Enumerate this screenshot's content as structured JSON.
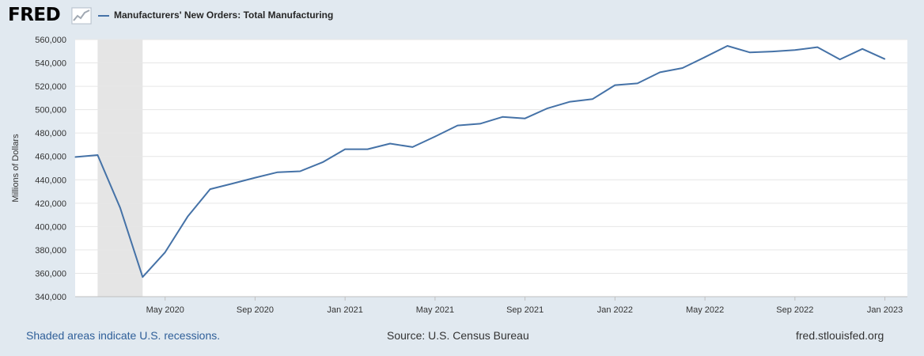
{
  "header": {
    "logo_text": "FRED",
    "series_title": "Manufacturers' New Orders: Total Manufacturing"
  },
  "footer": {
    "recession_note": "Shaded areas indicate U.S. recessions.",
    "source": "Source: U.S. Census Bureau",
    "site": "fred.stlouisfed.org"
  },
  "colors": {
    "line": "#4572a7",
    "recession": "#e5e5e5",
    "background": "#e1e9f0",
    "plot_bg": "#ffffff",
    "grid": "#e6e6e6"
  },
  "chart_data": {
    "type": "line",
    "title": "Manufacturers' New Orders: Total Manufacturing",
    "ylabel": "Millions of Dollars",
    "xlabel": "",
    "ylim": [
      340000,
      560000
    ],
    "y_ticks": [
      340000,
      360000,
      380000,
      400000,
      420000,
      440000,
      460000,
      480000,
      500000,
      520000,
      540000,
      560000
    ],
    "y_tick_labels": [
      "340,000",
      "360,000",
      "380,000",
      "400,000",
      "420,000",
      "440,000",
      "460,000",
      "480,000",
      "500,000",
      "520,000",
      "540,000",
      "560,000"
    ],
    "x_tick_labels": [
      "May 2020",
      "Sep 2020",
      "Jan 2021",
      "May 2021",
      "Sep 2021",
      "Jan 2022",
      "May 2022",
      "Sep 2022",
      "Jan 2023"
    ],
    "x_tick_month_index": [
      4,
      8,
      12,
      16,
      20,
      24,
      28,
      32,
      36
    ],
    "x_range_month_index": [
      0,
      37
    ],
    "recession": {
      "start_month_index": 1,
      "end_month_index": 3
    },
    "series": [
      {
        "name": "Manufacturers' New Orders: Total Manufacturing",
        "start": "Jan 2020",
        "frequency": "monthly",
        "values": [
          459500,
          461200,
          416000,
          356800,
          378000,
          408500,
          432000,
          436800,
          441800,
          446500,
          447300,
          455000,
          466200,
          466200,
          471000,
          468000,
          477000,
          486500,
          488000,
          493800,
          492500,
          501200,
          506800,
          509000,
          521000,
          522500,
          532000,
          535600,
          545000,
          554600,
          549000,
          549800,
          551000,
          553500,
          543000,
          552000,
          543300
        ]
      }
    ]
  }
}
